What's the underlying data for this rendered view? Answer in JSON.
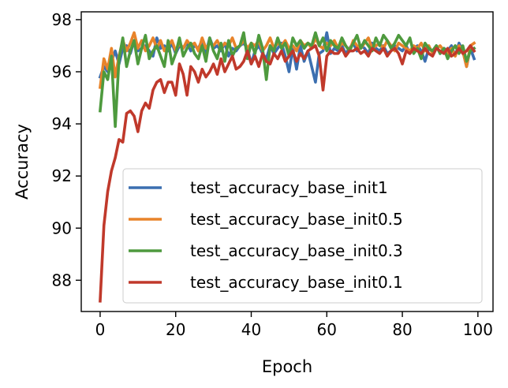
{
  "chart_data": {
    "type": "line",
    "title": "",
    "xlabel": "Epoch",
    "ylabel": "Accuracy",
    "xlim": [
      -5,
      104
    ],
    "ylim": [
      86.8,
      98.3
    ],
    "xticks": [
      0,
      20,
      40,
      60,
      80,
      100
    ],
    "yticks": [
      88,
      90,
      92,
      94,
      96,
      98
    ],
    "grid": false,
    "legend_position": "lower-right",
    "x": [
      0,
      1,
      2,
      3,
      4,
      5,
      6,
      7,
      8,
      9,
      10,
      11,
      12,
      13,
      14,
      15,
      16,
      17,
      18,
      19,
      20,
      21,
      22,
      23,
      24,
      25,
      26,
      27,
      28,
      29,
      30,
      31,
      32,
      33,
      34,
      35,
      36,
      37,
      38,
      39,
      40,
      41,
      42,
      43,
      44,
      45,
      46,
      47,
      48,
      49,
      50,
      51,
      52,
      53,
      54,
      55,
      56,
      57,
      58,
      59,
      60,
      61,
      62,
      63,
      64,
      65,
      66,
      67,
      68,
      69,
      70,
      71,
      72,
      73,
      74,
      75,
      76,
      77,
      78,
      79,
      80,
      81,
      82,
      83,
      84,
      85,
      86,
      87,
      88,
      89,
      90,
      91,
      92,
      93,
      94,
      95,
      96,
      97,
      98,
      99
    ],
    "series": [
      {
        "name": "test_accuracy_base_init1",
        "color": "#3c6fb0",
        "values": [
          95.8,
          96.2,
          96.0,
          96.4,
          96.8,
          96.3,
          96.9,
          97.0,
          96.7,
          97.2,
          96.8,
          96.9,
          97.0,
          96.8,
          96.6,
          97.3,
          96.9,
          97.0,
          96.8,
          97.1,
          96.7,
          97.0,
          96.9,
          97.1,
          96.8,
          97.0,
          96.9,
          97.2,
          96.7,
          97.3,
          96.9,
          97.0,
          96.8,
          97.1,
          96.6,
          96.9,
          96.8,
          97.0,
          97.1,
          96.9,
          96.3,
          96.8,
          97.0,
          96.7,
          96.5,
          97.0,
          96.7,
          96.9,
          97.1,
          96.6,
          96.0,
          96.9,
          96.1,
          97.0,
          96.4,
          96.8,
          96.2,
          95.6,
          96.7,
          96.8,
          97.5,
          96.7,
          96.9,
          96.8,
          97.0,
          96.7,
          96.9,
          97.1,
          96.8,
          97.0,
          96.9,
          96.7,
          97.1,
          96.9,
          96.8,
          97.0,
          96.7,
          96.8,
          97.0,
          96.9,
          96.8,
          97.0,
          96.7,
          96.9,
          97.0,
          96.8,
          96.4,
          96.9,
          96.8,
          97.0,
          96.7,
          96.9,
          96.8,
          97.0,
          96.6,
          97.1,
          96.8,
          96.2,
          96.9,
          96.5
        ]
      },
      {
        "name": "test_accuracy_base_init0.5",
        "color": "#e8832a",
        "values": [
          95.4,
          96.5,
          96.1,
          96.9,
          95.8,
          96.6,
          97.2,
          96.8,
          97.1,
          97.5,
          96.9,
          97.2,
          96.8,
          97.0,
          97.3,
          96.9,
          97.2,
          96.8,
          97.0,
          97.2,
          96.8,
          97.1,
          96.9,
          97.2,
          97.0,
          97.1,
          96.8,
          97.3,
          96.9,
          97.1,
          97.0,
          97.2,
          96.9,
          97.1,
          97.0,
          97.3,
          96.9,
          97.0,
          97.2,
          96.9,
          97.1,
          97.0,
          97.2,
          96.8,
          97.0,
          97.3,
          96.9,
          97.1,
          97.0,
          97.2,
          96.9,
          97.0,
          96.8,
          97.2,
          97.0,
          97.1,
          96.9,
          97.3,
          97.0,
          96.9,
          97.1,
          97.0,
          97.2,
          96.9,
          97.1,
          97.0,
          96.8,
          97.2,
          97.0,
          96.9,
          97.1,
          97.3,
          96.9,
          97.0,
          97.1,
          96.9,
          97.2,
          97.0,
          96.8,
          97.1,
          97.0,
          96.9,
          96.8,
          97.0,
          96.9,
          97.1,
          96.8,
          97.0,
          96.7,
          96.9,
          97.0,
          96.8,
          96.7,
          96.9,
          96.6,
          97.0,
          96.8,
          96.2,
          97.0,
          97.1
        ]
      },
      {
        "name": "test_accuracy_base_init0.3",
        "color": "#4e9a3e",
        "values": [
          94.5,
          96.0,
          95.7,
          96.6,
          93.9,
          96.5,
          97.3,
          96.2,
          96.8,
          97.2,
          96.3,
          96.9,
          97.4,
          96.5,
          96.8,
          97.0,
          96.6,
          96.2,
          97.2,
          96.3,
          96.7,
          97.3,
          96.6,
          96.9,
          97.1,
          96.7,
          96.5,
          97.0,
          96.4,
          97.3,
          96.8,
          96.5,
          97.1,
          96.4,
          97.2,
          96.6,
          96.9,
          97.0,
          97.5,
          96.5,
          97.1,
          96.7,
          97.4,
          96.9,
          95.7,
          97.0,
          96.8,
          97.3,
          96.9,
          97.1,
          96.6,
          97.3,
          97.0,
          97.2,
          96.9,
          97.1,
          97.0,
          97.5,
          97.0,
          97.3,
          96.8,
          97.2,
          97.0,
          96.9,
          97.3,
          97.0,
          96.8,
          97.1,
          97.4,
          96.9,
          97.2,
          97.0,
          96.8,
          97.3,
          97.0,
          97.4,
          97.2,
          96.9,
          97.1,
          97.4,
          97.2,
          97.0,
          97.3,
          96.7,
          96.9,
          96.5,
          97.1,
          96.9,
          96.8,
          97.0,
          96.7,
          96.9,
          96.5,
          96.8,
          97.0,
          96.7,
          97.0,
          96.4,
          96.8,
          96.9
        ]
      },
      {
        "name": "test_accuracy_base_init0.1",
        "color": "#c0392b",
        "values": [
          87.2,
          90.1,
          91.4,
          92.2,
          92.7,
          93.4,
          93.3,
          94.4,
          94.5,
          94.3,
          93.7,
          94.5,
          94.8,
          94.6,
          95.3,
          95.6,
          95.7,
          95.2,
          95.6,
          95.6,
          95.1,
          96.3,
          95.9,
          95.1,
          96.2,
          96.0,
          95.6,
          96.1,
          95.8,
          96.0,
          96.3,
          95.9,
          96.5,
          96.0,
          96.3,
          96.6,
          96.1,
          96.2,
          96.4,
          96.8,
          96.3,
          96.6,
          96.2,
          96.7,
          96.4,
          96.3,
          96.7,
          96.5,
          96.8,
          96.4,
          96.6,
          96.8,
          96.4,
          96.7,
          96.5,
          96.8,
          96.9,
          97.0,
          96.6,
          95.3,
          96.6,
          96.8,
          96.7,
          96.7,
          96.9,
          96.6,
          96.8,
          96.8,
          96.9,
          96.7,
          96.8,
          96.6,
          96.9,
          96.8,
          96.7,
          96.9,
          96.6,
          96.8,
          96.9,
          96.7,
          96.3,
          96.8,
          96.7,
          96.9,
          96.8,
          96.7,
          96.9,
          96.7,
          96.6,
          96.9,
          96.8,
          96.7,
          96.9,
          96.6,
          96.7,
          96.9,
          96.7,
          96.8,
          97.0,
          96.8
        ]
      }
    ]
  }
}
